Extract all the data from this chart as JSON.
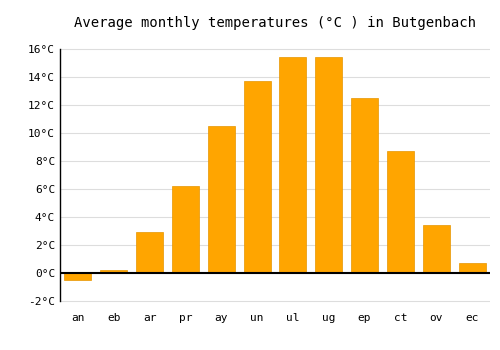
{
  "title": "Average monthly temperatures (°C ) in Butgenbach",
  "month_labels": [
    "an",
    "eb",
    "ar",
    "pr",
    "ay",
    "un",
    "ul",
    "ug",
    "ep",
    "ct",
    "ov",
    "ec"
  ],
  "values": [
    -0.5,
    0.2,
    2.9,
    6.2,
    10.5,
    13.7,
    15.4,
    15.4,
    12.5,
    8.7,
    3.4,
    0.7
  ],
  "bar_color": "#FFA500",
  "ylim": [
    -2.5,
    17
  ],
  "yticks": [
    -2,
    0,
    2,
    4,
    6,
    8,
    10,
    12,
    14,
    16
  ],
  "ytick_labels": [
    "-2°C",
    "0°C",
    "2°C",
    "4°C",
    "6°C",
    "8°C",
    "10°C",
    "12°C",
    "14°C",
    "16°C"
  ],
  "grid_color": "#dddddd",
  "background_color": "#ffffff",
  "title_fontsize": 10,
  "tick_fontsize": 8,
  "font_family": "monospace"
}
